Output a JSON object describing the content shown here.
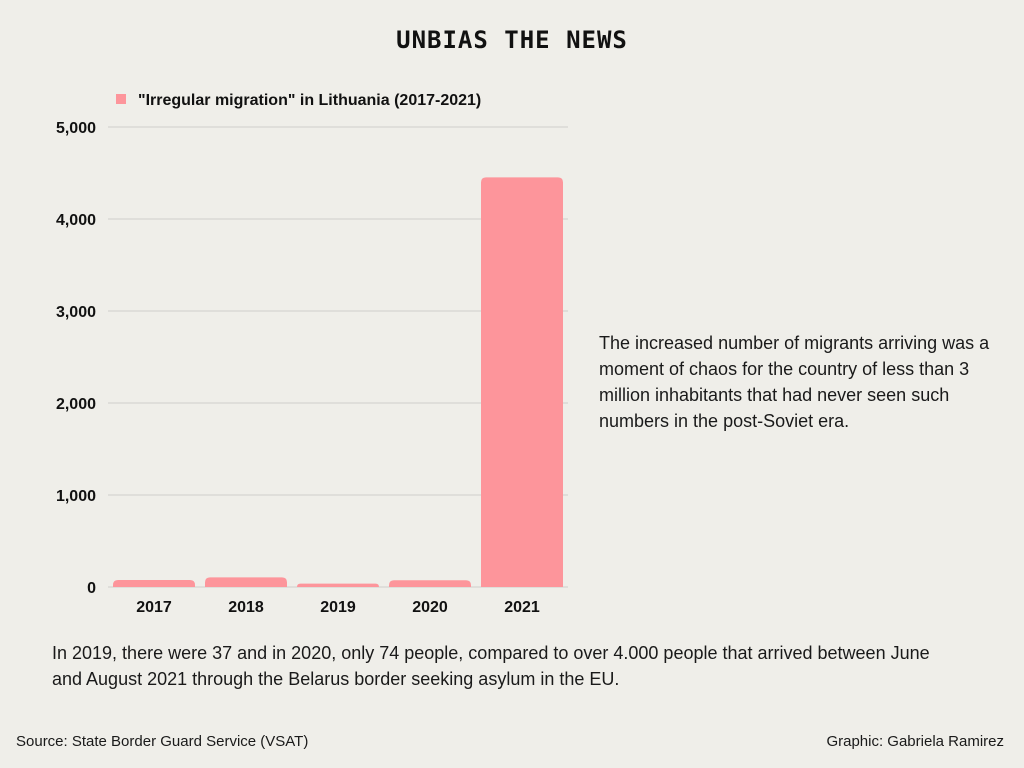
{
  "header": {
    "brand": "UNBIAS THE NEWS"
  },
  "colors": {
    "bar": "#fd959b",
    "grid": "#cfcfcb",
    "background": "#efeee9",
    "text": "#111111"
  },
  "chart_data": {
    "type": "bar",
    "categories": [
      "2017",
      "2018",
      "2019",
      "2020",
      "2021"
    ],
    "series": [
      {
        "name": "\"Irregular migration\" in Lithuania (2017-2021)",
        "values": [
          76,
          104,
          37,
          74,
          4453
        ]
      }
    ],
    "ylim": [
      0,
      5000
    ],
    "yticks": [
      "0",
      "1,000",
      "2,000",
      "3,000",
      "4,000",
      "5,000"
    ],
    "grid": true,
    "legend": "top-left"
  },
  "side_note": "The increased number of migrants arriving was a moment of chaos for the country of less than 3 million inhabitants that had never seen such numbers in the post-Soviet era.",
  "bottom_note": "In 2019, there were 37 and in 2020, only 74 people, compared to over 4.000 people that arrived between June and August 2021 through the Belarus border seeking asylum in the EU.",
  "footer": {
    "source": "Source: State Border Guard Service (VSAT)",
    "credit": "Graphic: Gabriela Ramirez"
  }
}
